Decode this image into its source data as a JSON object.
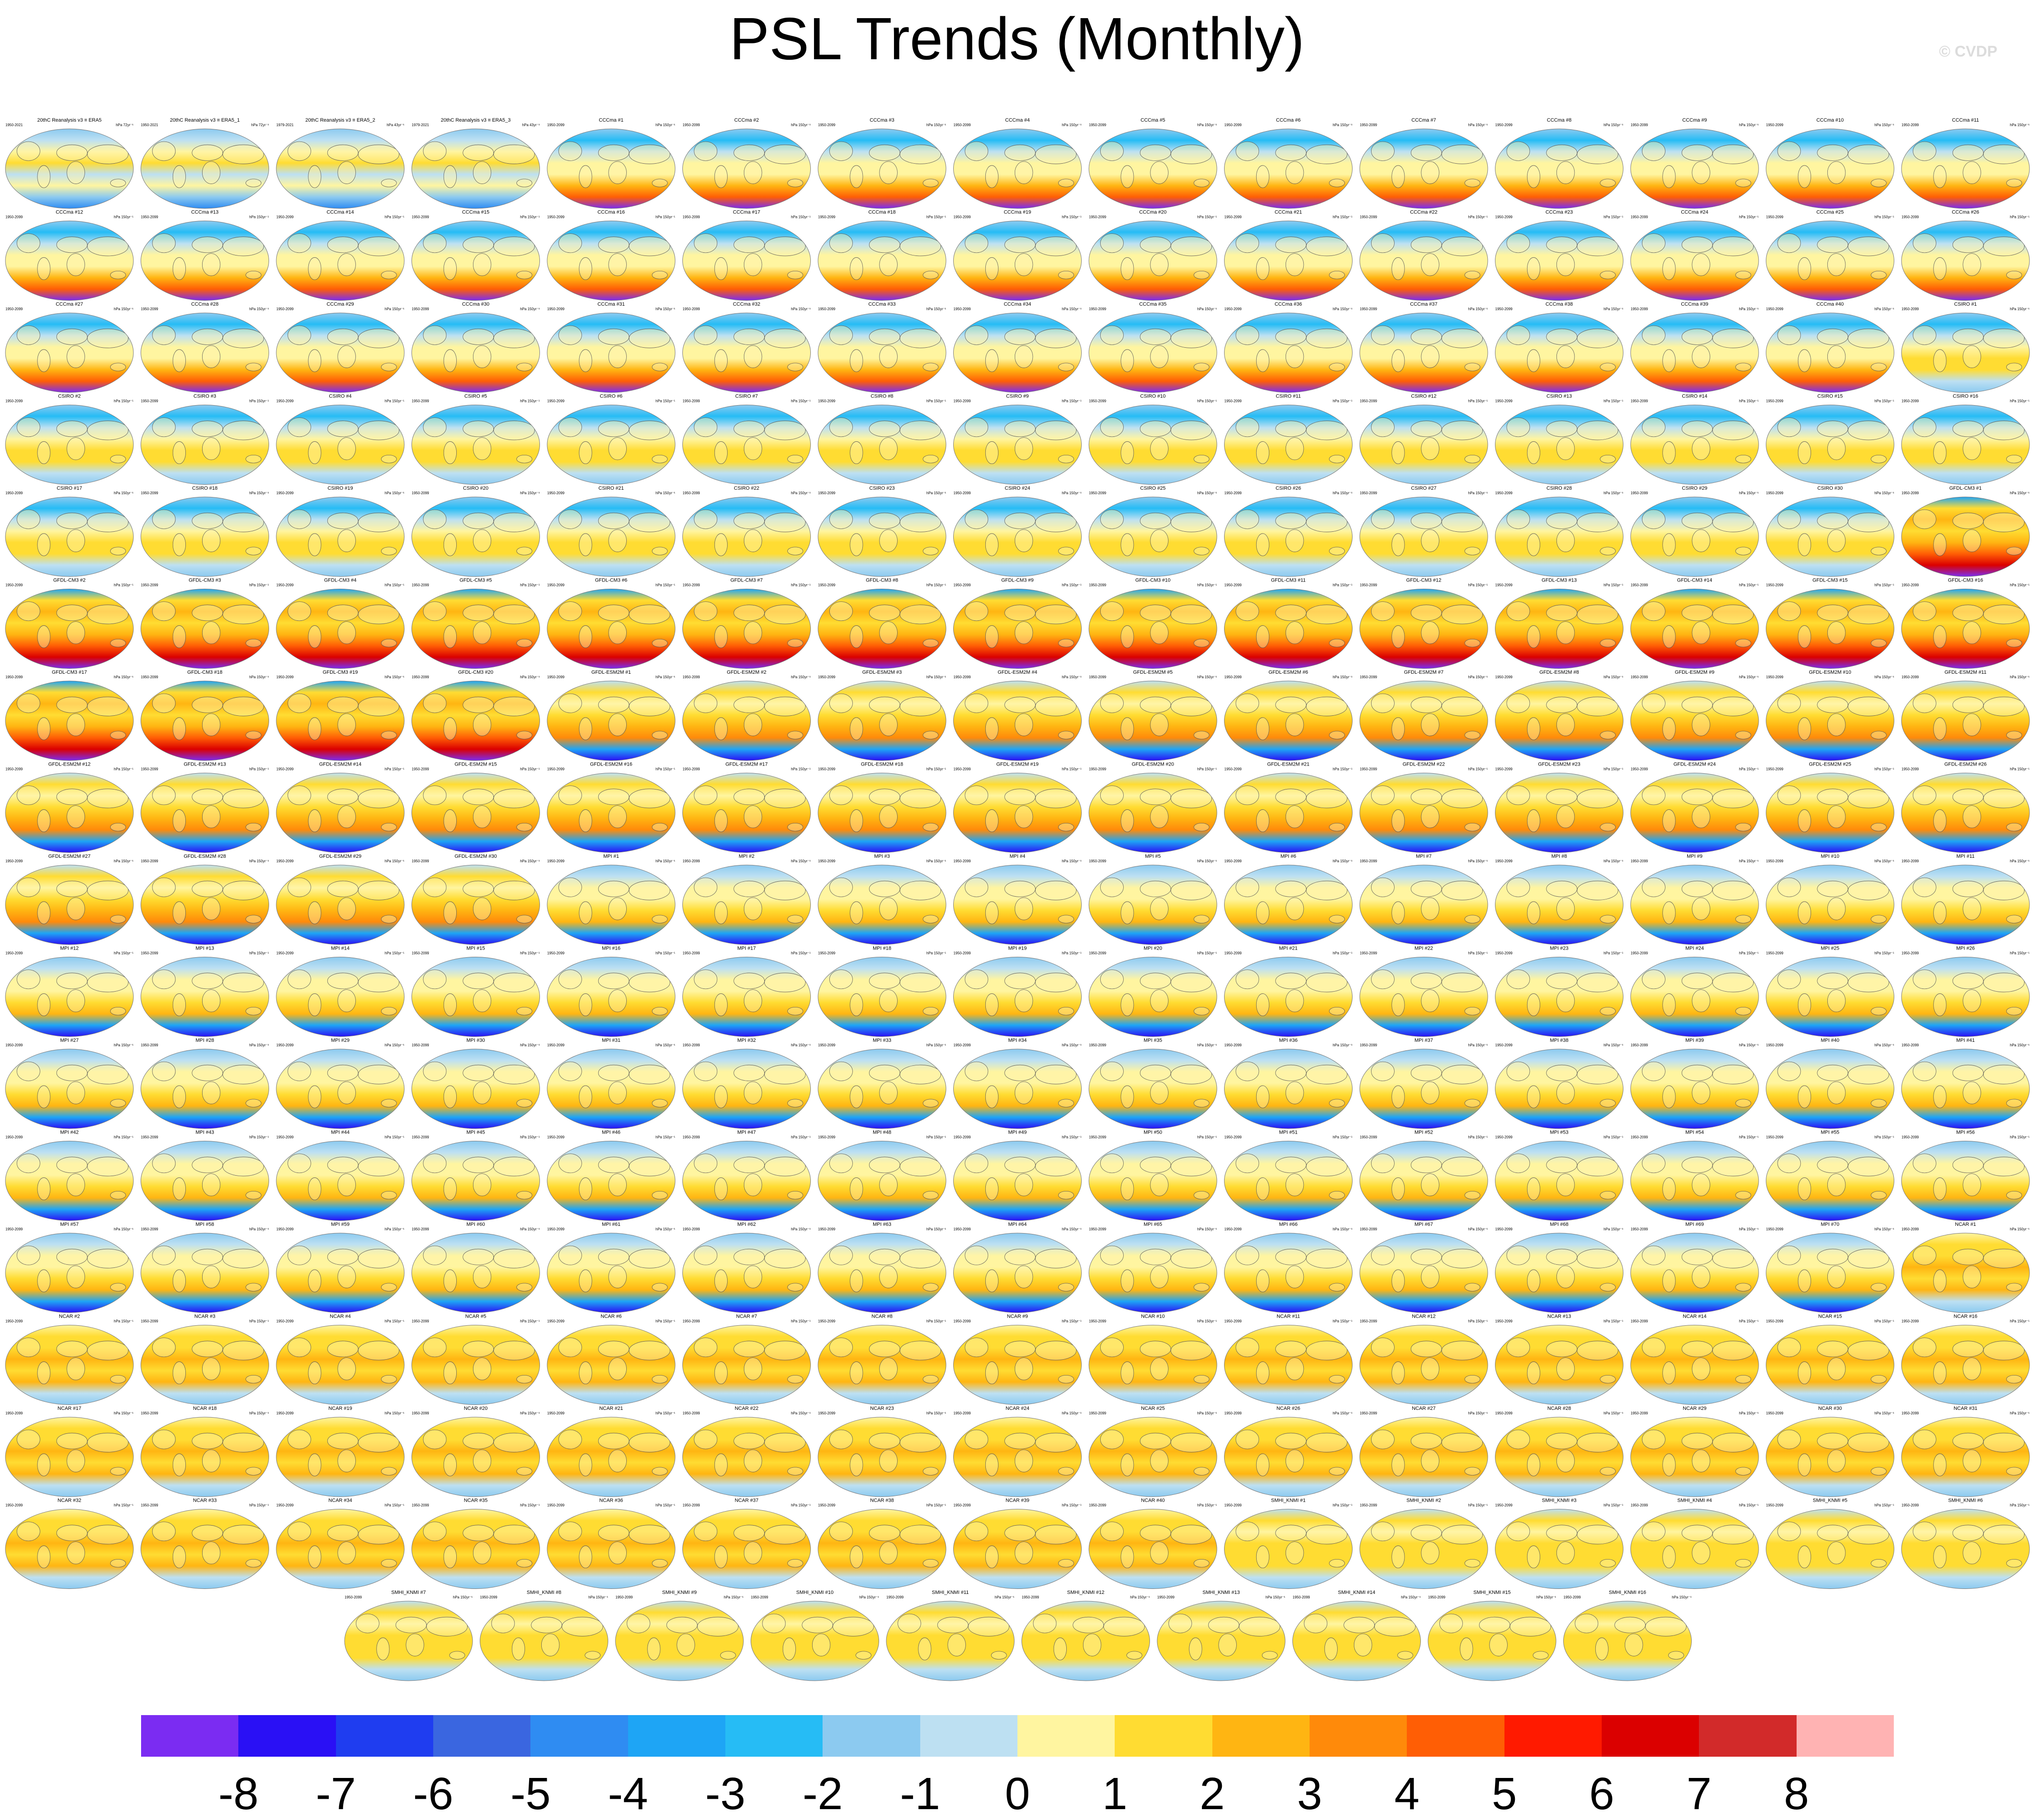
{
  "page": {
    "title": "PSL Trends (Monthly)",
    "watermark": "© CVDP"
  },
  "colors": {
    "palette": [
      "#7b2cf2",
      "#2a10f5",
      "#1f3df0",
      "#3a66e0",
      "#2f8cf2",
      "#1ea5f5",
      "#26bcf5",
      "#8ccaf0",
      "#bde0f2",
      "#fff5a0",
      "#ffdc32",
      "#ffb512",
      "#ff8a0a",
      "#ff5e05",
      "#ff1a00",
      "#db0000",
      "#d22a2a",
      "#ffb3b3"
    ],
    "land": "#fff3b0",
    "coast": "#555555"
  },
  "chart_data": {
    "type": "heatmap",
    "title": "PSL Trends (Monthly)",
    "units": "hPa 150yr⁻¹",
    "colorbar": {
      "levels": [
        -8,
        -7,
        -6,
        -5,
        -4,
        -3,
        -2,
        -1,
        0,
        1,
        2,
        3,
        4,
        5,
        6,
        7,
        8
      ],
      "tick_labels": [
        "-8",
        "-7",
        "-6",
        "-5",
        "-4",
        "-3",
        "-2",
        "-1",
        "0",
        "1",
        "2",
        "3",
        "4",
        "5",
        "6",
        "7",
        "8"
      ]
    },
    "panels": [
      {
        "title": "20thC Reanalysis v3 ≡ ERA5",
        "period": "1950-2021",
        "units": "hPa 72yr⁻¹",
        "pattern": "obs"
      },
      {
        "title": "20thC Reanalysis v3 ≡ ERA5_1",
        "period": "1950-2021",
        "units": "hPa 72yr⁻¹",
        "pattern": "obs"
      },
      {
        "title": "20thC Reanalysis v3 ≡ ERA5_2",
        "period": "1979-2021",
        "units": "hPa 43yr⁻¹",
        "pattern": "obs"
      },
      {
        "title": "20thC Reanalysis v3 ≡ ERA5_3",
        "period": "1979-2021",
        "units": "hPa 43yr⁻¹",
        "pattern": "obs"
      },
      {
        "title": "CCCma #1",
        "pattern": "cccma"
      },
      {
        "title": "CCCma #2",
        "pattern": "cccma"
      },
      {
        "title": "CCCma #3",
        "pattern": "cccma"
      },
      {
        "title": "CCCma #4",
        "pattern": "cccma"
      },
      {
        "title": "CCCma #5",
        "pattern": "cccma"
      },
      {
        "title": "CCCma #6",
        "pattern": "cccma"
      },
      {
        "title": "CCCma #7",
        "pattern": "cccma"
      },
      {
        "title": "CCCma #8",
        "pattern": "cccma"
      },
      {
        "title": "CCCma #9",
        "pattern": "cccma"
      },
      {
        "title": "CCCma #10",
        "pattern": "cccma"
      },
      {
        "title": "CCCma #11",
        "pattern": "cccma"
      },
      {
        "title": "CCCma #12",
        "pattern": "cccma"
      },
      {
        "title": "CCCma #13",
        "pattern": "cccma"
      },
      {
        "title": "CCCma #14",
        "pattern": "cccma"
      },
      {
        "title": "CCCma #15",
        "pattern": "cccma"
      },
      {
        "title": "CCCma #16",
        "pattern": "cccma"
      },
      {
        "title": "CCCma #17",
        "pattern": "cccma"
      },
      {
        "title": "CCCma #18",
        "pattern": "cccma"
      },
      {
        "title": "CCCma #19",
        "pattern": "cccma"
      },
      {
        "title": "CCCma #20",
        "pattern": "cccma"
      },
      {
        "title": "CCCma #21",
        "pattern": "cccma"
      },
      {
        "title": "CCCma #22",
        "pattern": "cccma"
      },
      {
        "title": "CCCma #23",
        "pattern": "cccma"
      },
      {
        "title": "CCCma #24",
        "pattern": "cccma"
      },
      {
        "title": "CCCma #25",
        "pattern": "cccma"
      },
      {
        "title": "CCCma #26",
        "pattern": "cccma"
      },
      {
        "title": "CCCma #27",
        "pattern": "cccma"
      },
      {
        "title": "CCCma #28",
        "pattern": "cccma"
      },
      {
        "title": "CCCma #29",
        "pattern": "cccma"
      },
      {
        "title": "CCCma #30",
        "pattern": "cccma"
      },
      {
        "title": "CCCma #31",
        "pattern": "cccma"
      },
      {
        "title": "CCCma #32",
        "pattern": "cccma"
      },
      {
        "title": "CCCma #33",
        "pattern": "cccma"
      },
      {
        "title": "CCCma #34",
        "pattern": "cccma"
      },
      {
        "title": "CCCma #35",
        "pattern": "cccma"
      },
      {
        "title": "CCCma #36",
        "pattern": "cccma"
      },
      {
        "title": "CCCma #37",
        "pattern": "cccma"
      },
      {
        "title": "CCCma #38",
        "pattern": "cccma"
      },
      {
        "title": "CCCma #39",
        "pattern": "cccma"
      },
      {
        "title": "CCCma #40",
        "pattern": "cccma"
      },
      {
        "title": "CSIRO #1",
        "pattern": "csiro"
      },
      {
        "title": "CSIRO #2",
        "pattern": "csiro"
      },
      {
        "title": "CSIRO #3",
        "pattern": "csiro"
      },
      {
        "title": "CSIRO #4",
        "pattern": "csiro"
      },
      {
        "title": "CSIRO #5",
        "pattern": "csiro"
      },
      {
        "title": "CSIRO #6",
        "pattern": "csiro"
      },
      {
        "title": "CSIRO #7",
        "pattern": "csiro"
      },
      {
        "title": "CSIRO #8",
        "pattern": "csiro"
      },
      {
        "title": "CSIRO #9",
        "pattern": "csiro"
      },
      {
        "title": "CSIRO #10",
        "pattern": "csiro"
      },
      {
        "title": "CSIRO #11",
        "pattern": "csiro"
      },
      {
        "title": "CSIRO #12",
        "pattern": "csiro"
      },
      {
        "title": "CSIRO #13",
        "pattern": "csiro"
      },
      {
        "title": "CSIRO #14",
        "pattern": "csiro"
      },
      {
        "title": "CSIRO #15",
        "pattern": "csiro"
      },
      {
        "title": "CSIRO #16",
        "pattern": "csiro"
      },
      {
        "title": "CSIRO #17",
        "pattern": "csiro"
      },
      {
        "title": "CSIRO #18",
        "pattern": "csiro"
      },
      {
        "title": "CSIRO #19",
        "pattern": "csiro"
      },
      {
        "title": "CSIRO #20",
        "pattern": "csiro"
      },
      {
        "title": "CSIRO #21",
        "pattern": "csiro"
      },
      {
        "title": "CSIRO #22",
        "pattern": "csiro"
      },
      {
        "title": "CSIRO #23",
        "pattern": "csiro"
      },
      {
        "title": "CSIRO #24",
        "pattern": "csiro"
      },
      {
        "title": "CSIRO #25",
        "pattern": "csiro"
      },
      {
        "title": "CSIRO #26",
        "pattern": "csiro"
      },
      {
        "title": "CSIRO #27",
        "pattern": "csiro"
      },
      {
        "title": "CSIRO #28",
        "pattern": "csiro"
      },
      {
        "title": "CSIRO #29",
        "pattern": "csiro"
      },
      {
        "title": "CSIRO #30",
        "pattern": "csiro"
      },
      {
        "title": "GFDL-CM3 #1",
        "pattern": "gfdlcm3"
      },
      {
        "title": "GFDL-CM3 #2",
        "pattern": "gfdlcm3"
      },
      {
        "title": "GFDL-CM3 #3",
        "pattern": "gfdlcm3"
      },
      {
        "title": "GFDL-CM3 #4",
        "pattern": "gfdlcm3"
      },
      {
        "title": "GFDL-CM3 #5",
        "pattern": "gfdlcm3"
      },
      {
        "title": "GFDL-CM3 #6",
        "pattern": "gfdlcm3"
      },
      {
        "title": "GFDL-CM3 #7",
        "pattern": "gfdlcm3"
      },
      {
        "title": "GFDL-CM3 #8",
        "pattern": "gfdlcm3"
      },
      {
        "title": "GFDL-CM3 #9",
        "pattern": "gfdlcm3"
      },
      {
        "title": "GFDL-CM3 #10",
        "pattern": "gfdlcm3"
      },
      {
        "title": "GFDL-CM3 #11",
        "pattern": "gfdlcm3"
      },
      {
        "title": "GFDL-CM3 #12",
        "pattern": "gfdlcm3"
      },
      {
        "title": "GFDL-CM3 #13",
        "pattern": "gfdlcm3"
      },
      {
        "title": "GFDL-CM3 #14",
        "pattern": "gfdlcm3"
      },
      {
        "title": "GFDL-CM3 #15",
        "pattern": "gfdlcm3"
      },
      {
        "title": "GFDL-CM3 #16",
        "pattern": "gfdlcm3"
      },
      {
        "title": "GFDL-CM3 #17",
        "pattern": "gfdlcm3"
      },
      {
        "title": "GFDL-CM3 #18",
        "pattern": "gfdlcm3"
      },
      {
        "title": "GFDL-CM3 #19",
        "pattern": "gfdlcm3"
      },
      {
        "title": "GFDL-CM3 #20",
        "pattern": "gfdlcm3"
      },
      {
        "title": "GFDL-ESM2M #1",
        "pattern": "gfdlesm"
      },
      {
        "title": "GFDL-ESM2M #2",
        "pattern": "gfdlesm"
      },
      {
        "title": "GFDL-ESM2M #3",
        "pattern": "gfdlesm"
      },
      {
        "title": "GFDL-ESM2M #4",
        "pattern": "gfdlesm"
      },
      {
        "title": "GFDL-ESM2M #5",
        "pattern": "gfdlesm"
      },
      {
        "title": "GFDL-ESM2M #6",
        "pattern": "gfdlesm"
      },
      {
        "title": "GFDL-ESM2M #7",
        "pattern": "gfdlesm"
      },
      {
        "title": "GFDL-ESM2M #8",
        "pattern": "gfdlesm"
      },
      {
        "title": "GFDL-ESM2M #9",
        "pattern": "gfdlesm"
      },
      {
        "title": "GFDL-ESM2M #10",
        "pattern": "gfdlesm"
      },
      {
        "title": "GFDL-ESM2M #11",
        "pattern": "gfdlesm"
      },
      {
        "title": "GFDL-ESM2M #12",
        "pattern": "gfdlesm"
      },
      {
        "title": "GFDL-ESM2M #13",
        "pattern": "gfdlesm"
      },
      {
        "title": "GFDL-ESM2M #14",
        "pattern": "gfdlesm"
      },
      {
        "title": "GFDL-ESM2M #15",
        "pattern": "gfdlesm"
      },
      {
        "title": "GFDL-ESM2M #16",
        "pattern": "gfdlesm"
      },
      {
        "title": "GFDL-ESM2M #17",
        "pattern": "gfdlesm"
      },
      {
        "title": "GFDL-ESM2M #18",
        "pattern": "gfdlesm"
      },
      {
        "title": "GFDL-ESM2M #19",
        "pattern": "gfdlesm"
      },
      {
        "title": "GFDL-ESM2M #20",
        "pattern": "gfdlesm"
      },
      {
        "title": "GFDL-ESM2M #21",
        "pattern": "gfdlesm"
      },
      {
        "title": "GFDL-ESM2M #22",
        "pattern": "gfdlesm"
      },
      {
        "title": "GFDL-ESM2M #23",
        "pattern": "gfdlesm"
      },
      {
        "title": "GFDL-ESM2M #24",
        "pattern": "gfdlesm"
      },
      {
        "title": "GFDL-ESM2M #25",
        "pattern": "gfdlesm"
      },
      {
        "title": "GFDL-ESM2M #26",
        "pattern": "gfdlesm"
      },
      {
        "title": "GFDL-ESM2M #27",
        "pattern": "gfdlesm"
      },
      {
        "title": "GFDL-ESM2M #28",
        "pattern": "gfdlesm"
      },
      {
        "title": "GFDL-ESM2M #29",
        "pattern": "gfdlesm"
      },
      {
        "title": "GFDL-ESM2M #30",
        "pattern": "gfdlesm"
      },
      {
        "title": "MPI #1",
        "pattern": "mpi"
      },
      {
        "title": "MPI #2",
        "pattern": "mpi"
      },
      {
        "title": "MPI #3",
        "pattern": "mpi"
      },
      {
        "title": "MPI #4",
        "pattern": "mpi"
      },
      {
        "title": "MPI #5",
        "pattern": "mpi"
      },
      {
        "title": "MPI #6",
        "pattern": "mpi"
      },
      {
        "title": "MPI #7",
        "pattern": "mpi"
      },
      {
        "title": "MPI #8",
        "pattern": "mpi"
      },
      {
        "title": "MPI #9",
        "pattern": "mpi"
      },
      {
        "title": "MPI #10",
        "pattern": "mpi"
      },
      {
        "title": "MPI #11",
        "pattern": "mpi"
      },
      {
        "title": "MPI #12",
        "pattern": "mpi"
      },
      {
        "title": "MPI #13",
        "pattern": "mpi"
      },
      {
        "title": "MPI #14",
        "pattern": "mpi"
      },
      {
        "title": "MPI #15",
        "pattern": "mpi"
      },
      {
        "title": "MPI #16",
        "pattern": "mpi"
      },
      {
        "title": "MPI #17",
        "pattern": "mpi"
      },
      {
        "title": "MPI #18",
        "pattern": "mpi"
      },
      {
        "title": "MPI #19",
        "pattern": "mpi"
      },
      {
        "title": "MPI #20",
        "pattern": "mpi"
      },
      {
        "title": "MPI #21",
        "pattern": "mpi"
      },
      {
        "title": "MPI #22",
        "pattern": "mpi"
      },
      {
        "title": "MPI #23",
        "pattern": "mpi"
      },
      {
        "title": "MPI #24",
        "pattern": "mpi"
      },
      {
        "title": "MPI #25",
        "pattern": "mpi"
      },
      {
        "title": "MPI #26",
        "pattern": "mpi"
      },
      {
        "title": "MPI #27",
        "pattern": "mpi"
      },
      {
        "title": "MPI #28",
        "pattern": "mpi"
      },
      {
        "title": "MPI #29",
        "pattern": "mpi"
      },
      {
        "title": "MPI #30",
        "pattern": "mpi"
      },
      {
        "title": "MPI #31",
        "pattern": "mpi"
      },
      {
        "title": "MPI #32",
        "pattern": "mpi"
      },
      {
        "title": "MPI #33",
        "pattern": "mpi"
      },
      {
        "title": "MPI #34",
        "pattern": "mpi"
      },
      {
        "title": "MPI #35",
        "pattern": "mpi"
      },
      {
        "title": "MPI #36",
        "pattern": "mpi"
      },
      {
        "title": "MPI #37",
        "pattern": "mpi"
      },
      {
        "title": "MPI #38",
        "pattern": "mpi"
      },
      {
        "title": "MPI #39",
        "pattern": "mpi"
      },
      {
        "title": "MPI #40",
        "pattern": "mpi"
      },
      {
        "title": "MPI #41",
        "pattern": "mpi"
      },
      {
        "title": "MPI #42",
        "pattern": "mpi"
      },
      {
        "title": "MPI #43",
        "pattern": "mpi"
      },
      {
        "title": "MPI #44",
        "pattern": "mpi"
      },
      {
        "title": "MPI #45",
        "pattern": "mpi"
      },
      {
        "title": "MPI #46",
        "pattern": "mpi"
      },
      {
        "title": "MPI #47",
        "pattern": "mpi"
      },
      {
        "title": "MPI #48",
        "pattern": "mpi"
      },
      {
        "title": "MPI #49",
        "pattern": "mpi"
      },
      {
        "title": "MPI #50",
        "pattern": "mpi"
      },
      {
        "title": "MPI #51",
        "pattern": "mpi"
      },
      {
        "title": "MPI #52",
        "pattern": "mpi"
      },
      {
        "title": "MPI #53",
        "pattern": "mpi"
      },
      {
        "title": "MPI #54",
        "pattern": "mpi"
      },
      {
        "title": "MPI #55",
        "pattern": "mpi"
      },
      {
        "title": "MPI #56",
        "pattern": "mpi"
      },
      {
        "title": "MPI #57",
        "pattern": "mpi"
      },
      {
        "title": "MPI #58",
        "pattern": "mpi"
      },
      {
        "title": "MPI #59",
        "pattern": "mpi"
      },
      {
        "title": "MPI #60",
        "pattern": "mpi"
      },
      {
        "title": "MPI #61",
        "pattern": "mpi"
      },
      {
        "title": "MPI #62",
        "pattern": "mpi"
      },
      {
        "title": "MPI #63",
        "pattern": "mpi"
      },
      {
        "title": "MPI #64",
        "pattern": "mpi"
      },
      {
        "title": "MPI #65",
        "pattern": "mpi"
      },
      {
        "title": "MPI #66",
        "pattern": "mpi"
      },
      {
        "title": "MPI #67",
        "pattern": "mpi"
      },
      {
        "title": "MPI #68",
        "pattern": "mpi"
      },
      {
        "title": "MPI #69",
        "pattern": "mpi"
      },
      {
        "title": "MPI #70",
        "pattern": "mpi"
      },
      {
        "title": "NCAR #1",
        "pattern": "ncar"
      },
      {
        "title": "NCAR #2",
        "pattern": "ncar"
      },
      {
        "title": "NCAR #3",
        "pattern": "ncar"
      },
      {
        "title": "NCAR #4",
        "pattern": "ncar"
      },
      {
        "title": "NCAR #5",
        "pattern": "ncar"
      },
      {
        "title": "NCAR #6",
        "pattern": "ncar"
      },
      {
        "title": "NCAR #7",
        "pattern": "ncar"
      },
      {
        "title": "NCAR #8",
        "pattern": "ncar"
      },
      {
        "title": "NCAR #9",
        "pattern": "ncar"
      },
      {
        "title": "NCAR #10",
        "pattern": "ncar"
      },
      {
        "title": "NCAR #11",
        "pattern": "ncar"
      },
      {
        "title": "NCAR #12",
        "pattern": "ncar"
      },
      {
        "title": "NCAR #13",
        "pattern": "ncar"
      },
      {
        "title": "NCAR #14",
        "pattern": "ncar"
      },
      {
        "title": "NCAR #15",
        "pattern": "ncar"
      },
      {
        "title": "NCAR #16",
        "pattern": "ncar"
      },
      {
        "title": "NCAR #17",
        "pattern": "ncar"
      },
      {
        "title": "NCAR #18",
        "pattern": "ncar"
      },
      {
        "title": "NCAR #19",
        "pattern": "ncar"
      },
      {
        "title": "NCAR #20",
        "pattern": "ncar"
      },
      {
        "title": "NCAR #21",
        "pattern": "ncar"
      },
      {
        "title": "NCAR #22",
        "pattern": "ncar"
      },
      {
        "title": "NCAR #23",
        "pattern": "ncar"
      },
      {
        "title": "NCAR #24",
        "pattern": "ncar"
      },
      {
        "title": "NCAR #25",
        "pattern": "ncar"
      },
      {
        "title": "NCAR #26",
        "pattern": "ncar"
      },
      {
        "title": "NCAR #27",
        "pattern": "ncar"
      },
      {
        "title": "NCAR #28",
        "pattern": "ncar"
      },
      {
        "title": "NCAR #29",
        "pattern": "ncar"
      },
      {
        "title": "NCAR #30",
        "pattern": "ncar"
      },
      {
        "title": "NCAR #31",
        "pattern": "ncar"
      },
      {
        "title": "NCAR #32",
        "pattern": "ncar"
      },
      {
        "title": "NCAR #33",
        "pattern": "ncar"
      },
      {
        "title": "NCAR #34",
        "pattern": "ncar"
      },
      {
        "title": "NCAR #35",
        "pattern": "ncar"
      },
      {
        "title": "NCAR #36",
        "pattern": "ncar"
      },
      {
        "title": "NCAR #37",
        "pattern": "ncar"
      },
      {
        "title": "NCAR #38",
        "pattern": "ncar"
      },
      {
        "title": "NCAR #39",
        "pattern": "ncar"
      },
      {
        "title": "NCAR #40",
        "pattern": "ncar"
      },
      {
        "title": "SMHI_KNMI #1",
        "pattern": "smhi"
      },
      {
        "title": "SMHI_KNMI #2",
        "pattern": "smhi"
      },
      {
        "title": "SMHI_KNMI #3",
        "pattern": "smhi"
      },
      {
        "title": "SMHI_KNMI #4",
        "pattern": "smhi"
      },
      {
        "title": "SMHI_KNMI #5",
        "pattern": "smhi"
      },
      {
        "title": "SMHI_KNMI #6",
        "pattern": "smhi"
      },
      {
        "title": "SMHI_KNMI #7",
        "pattern": "smhi"
      },
      {
        "title": "SMHI_KNMI #8",
        "pattern": "smhi"
      },
      {
        "title": "SMHI_KNMI #9",
        "pattern": "smhi"
      },
      {
        "title": "SMHI_KNMI #10",
        "pattern": "smhi"
      },
      {
        "title": "SMHI_KNMI #11",
        "pattern": "smhi"
      },
      {
        "title": "SMHI_KNMI #12",
        "pattern": "smhi"
      },
      {
        "title": "SMHI_KNMI #13",
        "pattern": "smhi"
      },
      {
        "title": "SMHI_KNMI #14",
        "pattern": "smhi"
      },
      {
        "title": "SMHI_KNMI #15",
        "pattern": "smhi"
      },
      {
        "title": "SMHI_KNMI #16",
        "pattern": "smhi"
      }
    ],
    "default_period": "1950-2099"
  }
}
